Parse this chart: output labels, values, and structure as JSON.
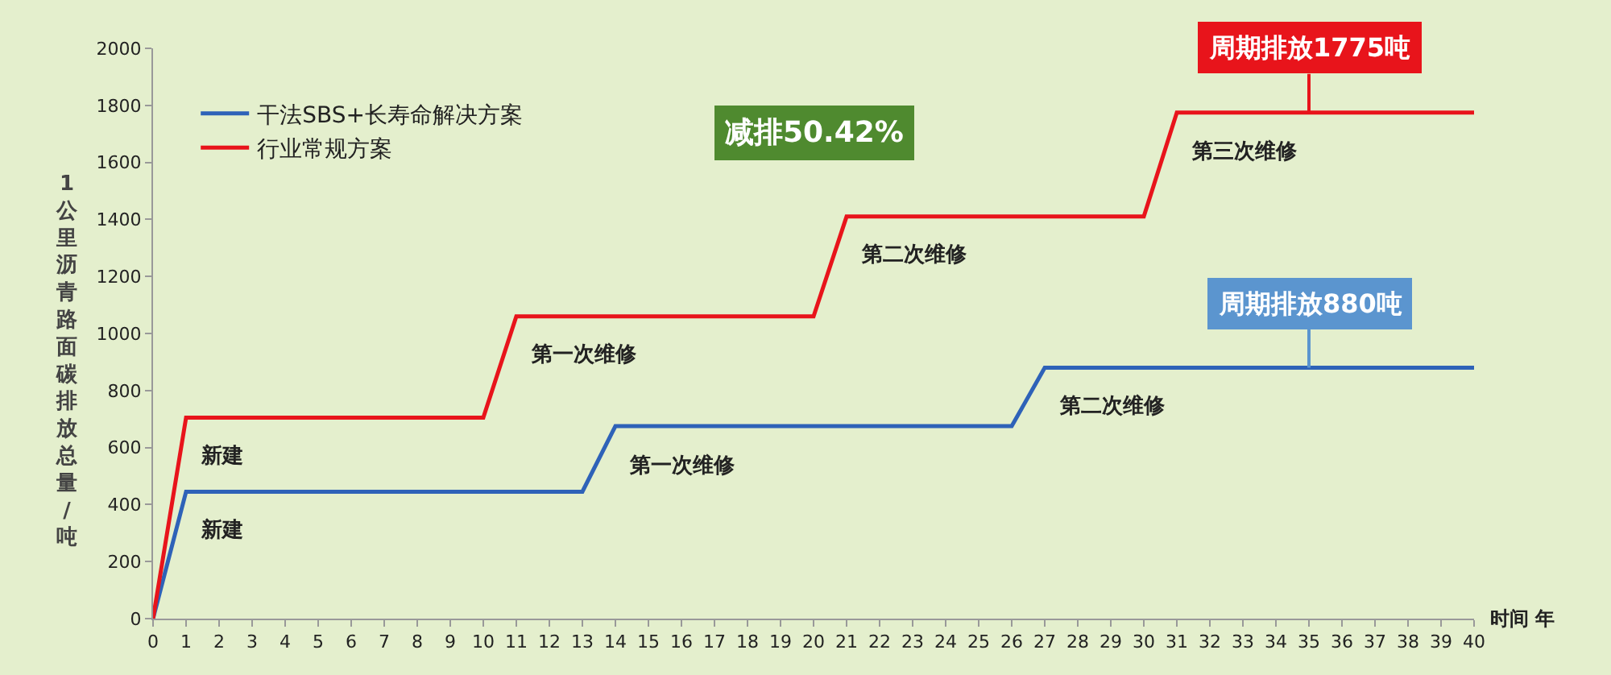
{
  "chart_data": {
    "type": "line",
    "xlabel": "时间 年",
    "ylabel": "1公里沥青路面碳排放总量/吨",
    "series": [
      {
        "name": "干法SBS+长寿命解决方案",
        "color": "#2e62b8",
        "x": [
          0,
          1,
          13,
          14,
          26,
          27,
          40
        ],
        "values": [
          0,
          445,
          445,
          675,
          675,
          880,
          880
        ]
      },
      {
        "name": "行业常规方案",
        "color": "#e8141b",
        "x": [
          0,
          1,
          10,
          11,
          20,
          21,
          30,
          31,
          40
        ],
        "values": [
          0,
          705,
          705,
          1060,
          1060,
          1410,
          1410,
          1775,
          1775
        ]
      }
    ],
    "annotations": [
      {
        "text": "新建",
        "x": 1,
        "y": 445
      },
      {
        "text": "新建",
        "x": 1,
        "y": 705
      },
      {
        "text": "第一次维修",
        "x": 11,
        "y": 1060
      },
      {
        "text": "第一次维修",
        "x": 14,
        "y": 675
      },
      {
        "text": "第二次维修",
        "x": 21,
        "y": 1410
      },
      {
        "text": "第二次维修",
        "x": 27,
        "y": 880
      },
      {
        "text": "第三次维修",
        "x": 31,
        "y": 1775
      },
      {
        "text": "周期排放1775吨",
        "x": 35,
        "y": 1775
      },
      {
        "text": "周期排放880吨",
        "x": 35,
        "y": 880
      },
      "减排50.42%"
    ],
    "xlim": [
      0,
      40
    ],
    "xticks": [
      0,
      1,
      2,
      3,
      4,
      5,
      6,
      7,
      8,
      9,
      10,
      11,
      12,
      13,
      14,
      15,
      16,
      17,
      18,
      19,
      20,
      21,
      22,
      23,
      24,
      25,
      26,
      27,
      28,
      29,
      30,
      31,
      32,
      33,
      34,
      35,
      36,
      37,
      38,
      39,
      40
    ],
    "ylim": [
      0,
      2000
    ],
    "yticks": [
      0,
      200,
      400,
      600,
      800,
      1000,
      1200,
      1400,
      1600,
      1800,
      2000
    ],
    "grid": false,
    "legend": "top left",
    "marker": "none",
    "line_style": "solid"
  }
}
